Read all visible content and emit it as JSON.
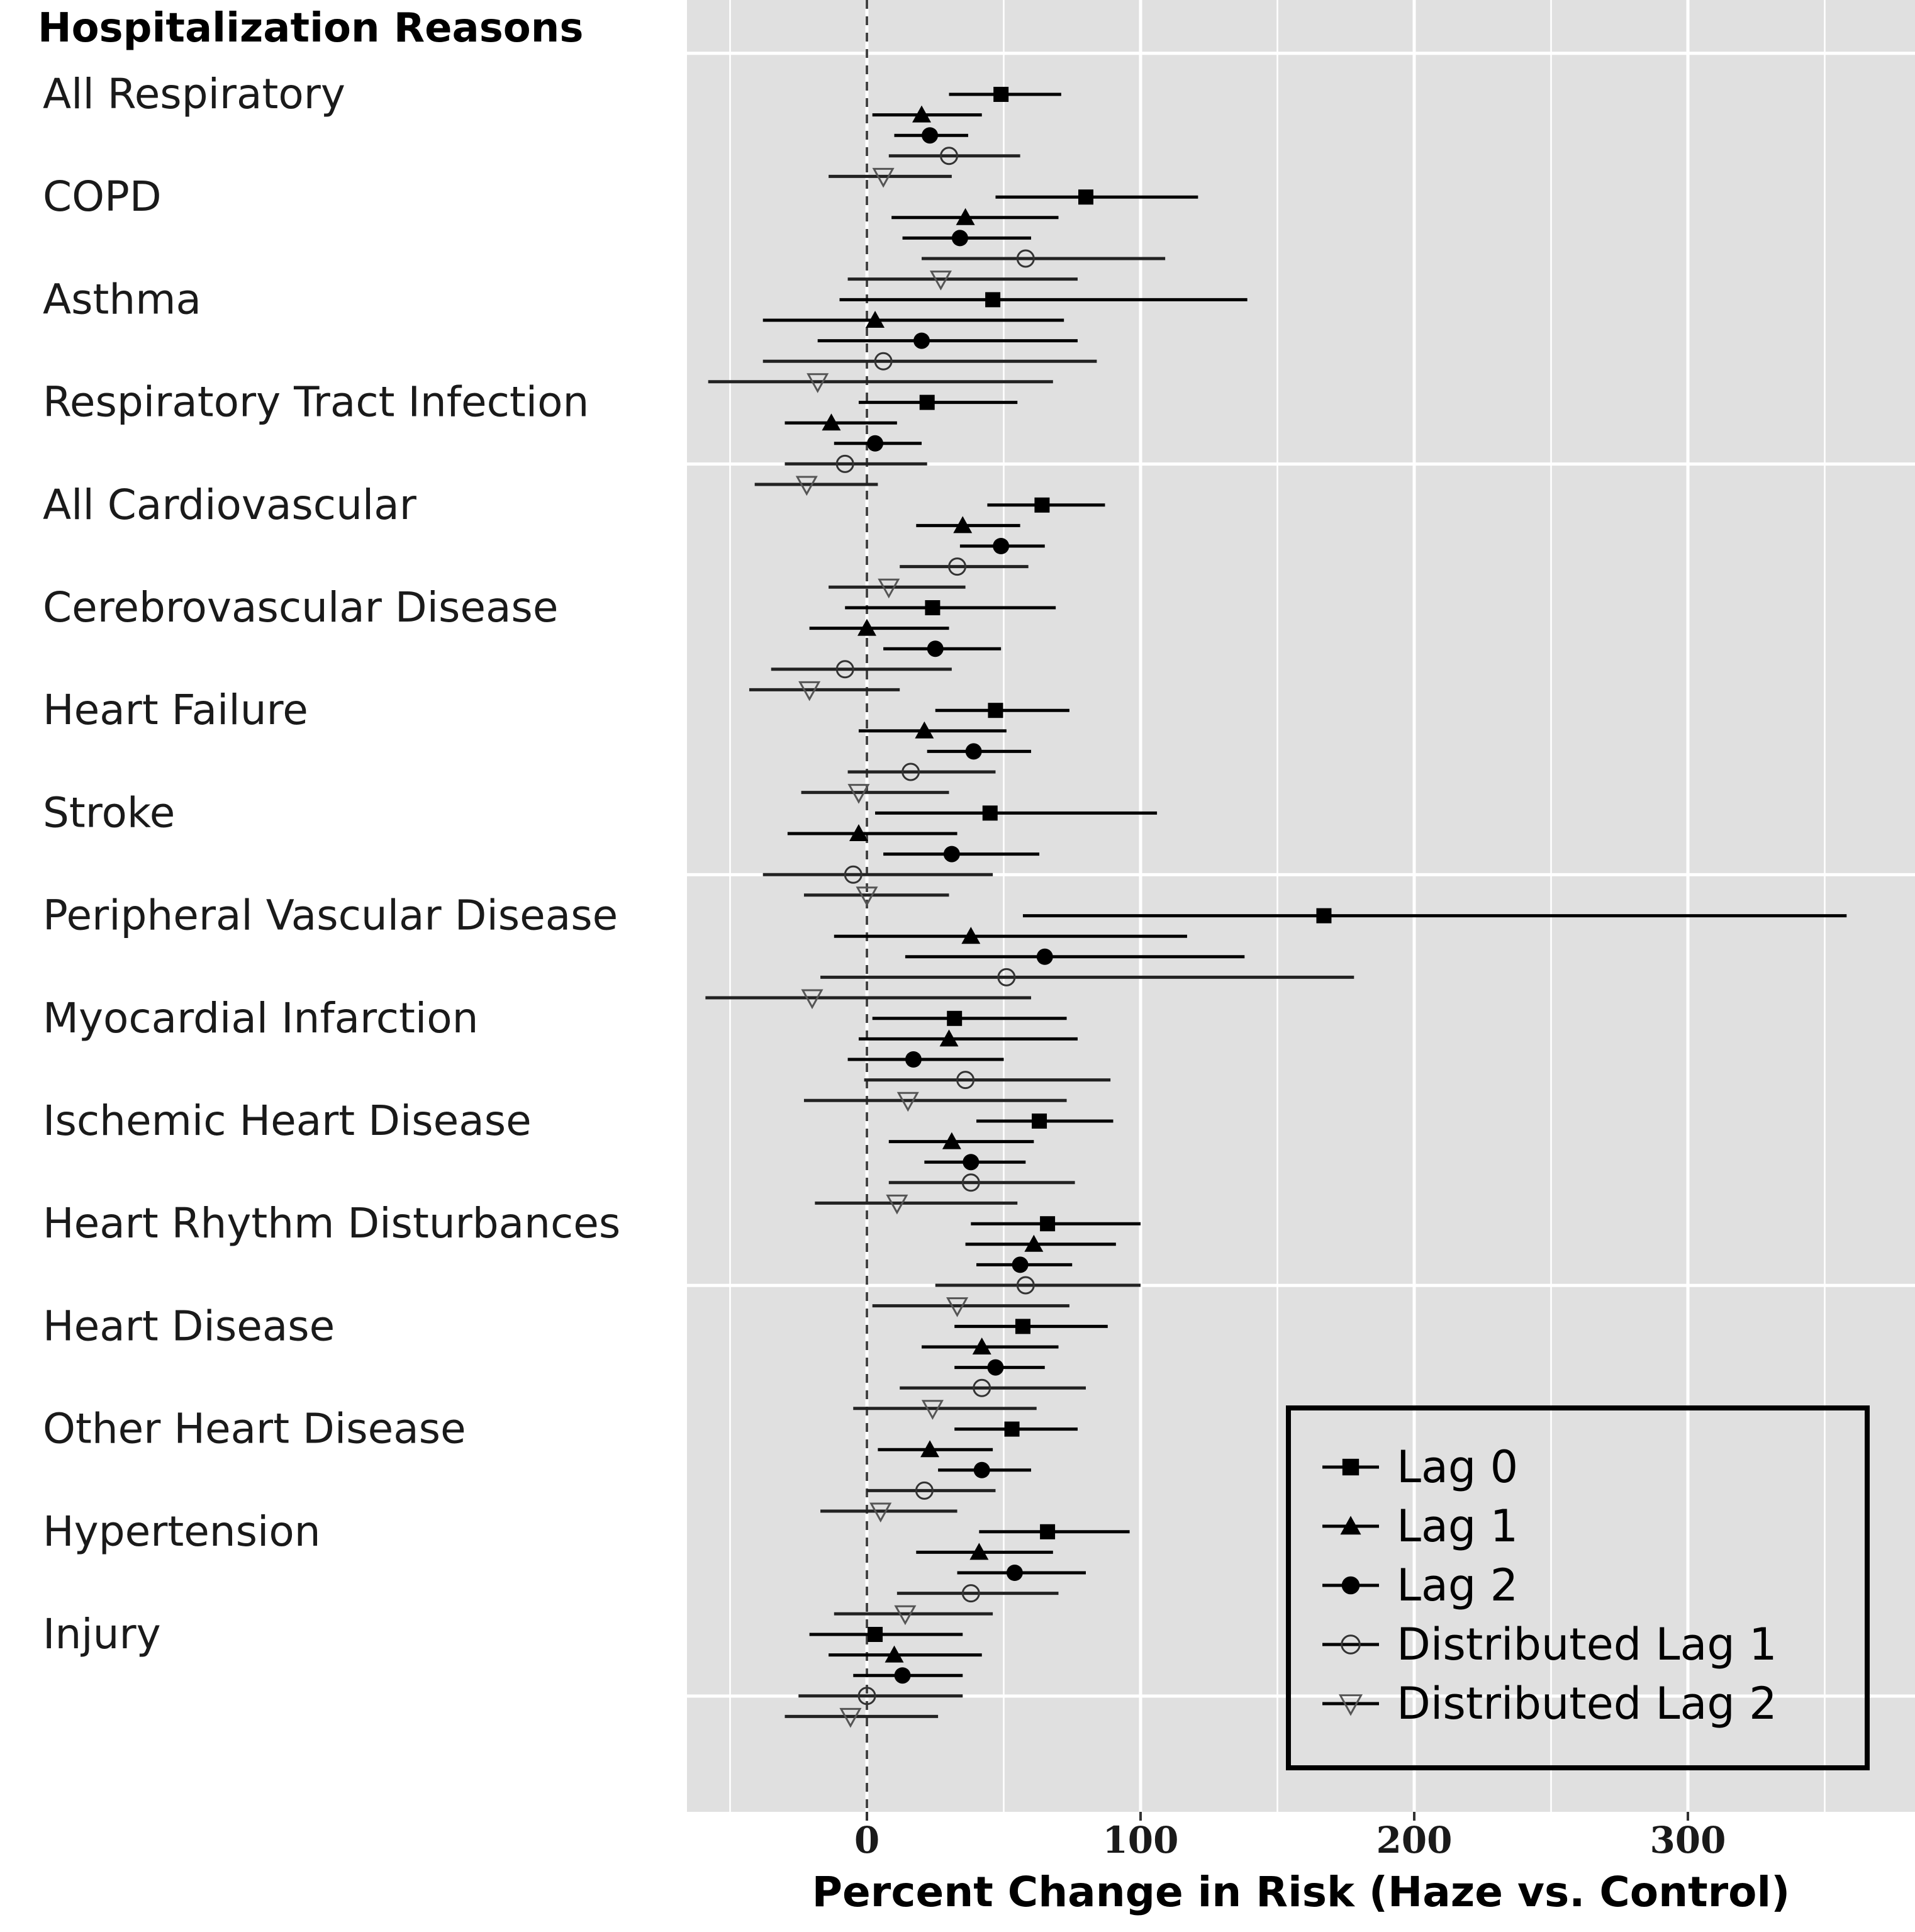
{
  "chart_data": {
    "type": "forest",
    "header": "Hospitalization Reasons",
    "xlabel": "Percent Change in Risk (Haze vs. Control)",
    "xlim": [
      -65,
      370
    ],
    "xticks": [
      0,
      100,
      200,
      300
    ],
    "x_tick_labels": [
      "0",
      "100",
      "200",
      "300"
    ],
    "reference_line": 0,
    "grid": true,
    "legend_position": "bottom-right",
    "categories": [
      "All Respiratory",
      "COPD",
      "Asthma",
      "Respiratory Tract Infection",
      "All Cardiovascular",
      "Cerebrovascular Disease",
      "Heart Failure",
      "Stroke",
      "Peripheral Vascular Disease",
      "Myocardial Infarction",
      "Ischemic Heart Disease",
      "Heart Rhythm Disturbances",
      "Heart Disease",
      "Other Heart Disease",
      "Hypertension",
      "Injury"
    ],
    "series": [
      {
        "name": "Lag 0",
        "marker": "filled-square",
        "estimate": [
          49,
          80,
          46,
          22,
          64,
          24,
          47,
          45,
          167,
          32,
          63,
          66,
          57,
          53,
          66,
          3
        ],
        "lower": [
          30,
          47,
          -10,
          -3,
          44,
          -8,
          25,
          3,
          57,
          2,
          40,
          38,
          32,
          32,
          41,
          -21
        ],
        "upper": [
          71,
          121,
          139,
          55,
          87,
          69,
          74,
          106,
          358,
          73,
          90,
          100,
          88,
          77,
          96,
          35
        ]
      },
      {
        "name": "Lag 1",
        "marker": "filled-triangle",
        "estimate": [
          20,
          36,
          3,
          -13,
          35,
          0,
          21,
          -3,
          38,
          30,
          31,
          61,
          42,
          23,
          41,
          10
        ],
        "lower": [
          2,
          9,
          -38,
          -30,
          18,
          -21,
          -3,
          -29,
          -12,
          -3,
          8,
          36,
          20,
          4,
          18,
          -14
        ],
        "upper": [
          42,
          70,
          72,
          11,
          56,
          30,
          51,
          33,
          117,
          77,
          61,
          91,
          70,
          46,
          68,
          42
        ]
      },
      {
        "name": "Lag 2",
        "marker": "filled-circle",
        "estimate": [
          23,
          34,
          20,
          3,
          49,
          25,
          39,
          31,
          65,
          17,
          38,
          56,
          47,
          42,
          54,
          13
        ],
        "lower": [
          10,
          13,
          -18,
          -12,
          34,
          6,
          22,
          6,
          14,
          -7,
          21,
          40,
          32,
          26,
          33,
          -5
        ],
        "upper": [
          37,
          60,
          77,
          20,
          65,
          49,
          60,
          63,
          138,
          50,
          58,
          75,
          65,
          60,
          80,
          35
        ]
      },
      {
        "name": "Distributed Lag 1",
        "marker": "open-circle",
        "estimate": [
          30,
          58,
          6,
          -8,
          33,
          -8,
          16,
          -5,
          51,
          36,
          38,
          58,
          42,
          21,
          38,
          0
        ],
        "lower": [
          8,
          20,
          -38,
          -30,
          12,
          -35,
          -7,
          -38,
          -17,
          -1,
          8,
          25,
          12,
          0,
          11,
          -25
        ],
        "upper": [
          56,
          109,
          84,
          22,
          59,
          31,
          47,
          46,
          178,
          89,
          76,
          100,
          80,
          47,
          70,
          35
        ]
      },
      {
        "name": "Distributed Lag 2",
        "marker": "open-triangle-down",
        "estimate": [
          6,
          27,
          -18,
          -22,
          8,
          -21,
          -3,
          0,
          -20,
          15,
          11,
          33,
          24,
          5,
          14,
          -6
        ],
        "lower": [
          -14,
          -7,
          -58,
          -41,
          -14,
          -43,
          -24,
          -23,
          -59,
          -23,
          -19,
          2,
          -5,
          -17,
          -12,
          -30
        ],
        "upper": [
          31,
          77,
          68,
          4,
          36,
          12,
          30,
          30,
          60,
          73,
          55,
          74,
          62,
          33,
          46,
          26
        ]
      }
    ]
  }
}
